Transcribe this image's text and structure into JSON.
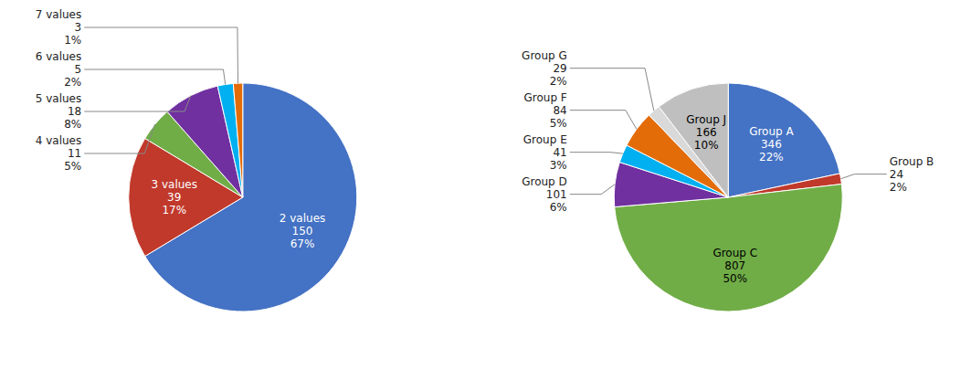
{
  "chart_data": [
    {
      "type": "pie",
      "categories": [
        "2 values",
        "3 values",
        "4 values",
        "5 values",
        "6 values",
        "7 values"
      ],
      "values": [
        150,
        39,
        11,
        18,
        5,
        3
      ],
      "percents": [
        67,
        17,
        5,
        8,
        2,
        1
      ],
      "percent_labels": [
        "67%",
        "17%",
        "5%",
        "8%",
        "2%",
        "1%"
      ],
      "colors": [
        "#4472c4",
        "#c0392b",
        "#70ad47",
        "#7030a0",
        "#00b0f0",
        "#e36c09"
      ],
      "data_labels": true
    },
    {
      "type": "pie",
      "categories": [
        "Group A",
        "Group B",
        "Group C",
        "Group D",
        "Group E",
        "Group F",
        "Group G",
        "Group J"
      ],
      "values": [
        346,
        24,
        807,
        101,
        41,
        84,
        29,
        166
      ],
      "percents": [
        22,
        2,
        50,
        6,
        3,
        5,
        2,
        10
      ],
      "percent_labels": [
        "22%",
        "2%",
        "50%",
        "6%",
        "3%",
        "5%",
        "2%",
        "10%"
      ],
      "colors": [
        "#4472c4",
        "#c0392b",
        "#70ad47",
        "#7030a0",
        "#00b0f0",
        "#e36c09",
        "#d9d9d9",
        "#bfbfbf"
      ],
      "data_labels": true
    }
  ]
}
